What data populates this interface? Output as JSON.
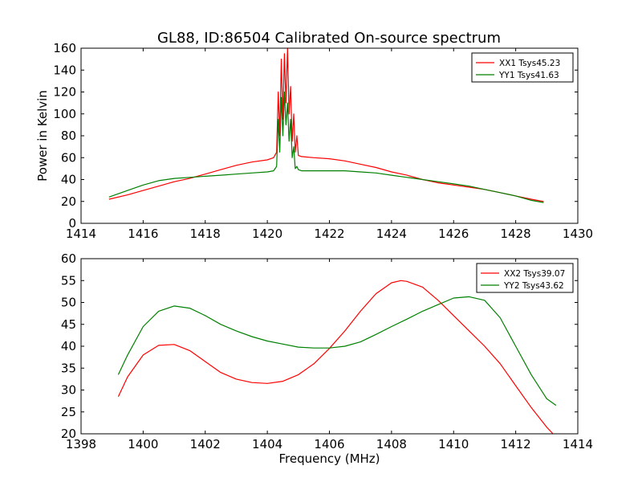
{
  "figure": {
    "title": "GL88, ID:86504 Calibrated On-source spectrum"
  },
  "chart_data": [
    {
      "type": "line",
      "title": "GL88, ID:86504 Calibrated On-source spectrum",
      "xlabel": "",
      "ylabel": "Power in Kelvin",
      "xlim": [
        1414,
        1430
      ],
      "ylim": [
        0,
        160
      ],
      "xticks": [
        1414,
        1416,
        1418,
        1420,
        1422,
        1424,
        1426,
        1428,
        1430
      ],
      "yticks": [
        0,
        20,
        40,
        60,
        80,
        100,
        120,
        140,
        160
      ],
      "grid": false,
      "legend_position": "top-right",
      "series": [
        {
          "name": "XX1 Tsys45.23",
          "color": "#ff0000",
          "x": [
            1414.9,
            1415.5,
            1416.0,
            1416.5,
            1417.0,
            1417.5,
            1418.0,
            1418.5,
            1419.0,
            1419.5,
            1420.0,
            1420.2,
            1420.3,
            1420.35,
            1420.4,
            1420.45,
            1420.5,
            1420.55,
            1420.6,
            1420.65,
            1420.7,
            1420.75,
            1420.8,
            1420.85,
            1420.9,
            1420.95,
            1421.0,
            1421.1,
            1421.5,
            1422.0,
            1422.5,
            1423.0,
            1423.5,
            1424.0,
            1424.5,
            1425.0,
            1425.5,
            1426.0,
            1426.5,
            1427.0,
            1427.5,
            1428.0,
            1428.5,
            1428.9
          ],
          "y": [
            22,
            26,
            30,
            34,
            38,
            41,
            45,
            49,
            53,
            56,
            58,
            60,
            65,
            120,
            80,
            150,
            95,
            155,
            110,
            160,
            100,
            125,
            75,
            100,
            65,
            80,
            62,
            61,
            60,
            59,
            57,
            54,
            51,
            47,
            44,
            40,
            37,
            35,
            33,
            31,
            28,
            25,
            22,
            20
          ]
        },
        {
          "name": "YY1 Tsys41.63",
          "color": "#008000",
          "x": [
            1414.9,
            1415.5,
            1416.0,
            1416.5,
            1417.0,
            1417.5,
            1418.0,
            1418.5,
            1419.0,
            1419.5,
            1420.0,
            1420.2,
            1420.3,
            1420.35,
            1420.4,
            1420.45,
            1420.5,
            1420.55,
            1420.6,
            1420.65,
            1420.7,
            1420.75,
            1420.8,
            1420.85,
            1420.9,
            1420.95,
            1421.0,
            1421.1,
            1421.5,
            1422.0,
            1422.5,
            1423.0,
            1423.5,
            1424.0,
            1424.5,
            1425.0,
            1425.5,
            1426.0,
            1426.5,
            1427.0,
            1427.5,
            1428.0,
            1428.5,
            1428.9
          ],
          "y": [
            24,
            30,
            35,
            39,
            41,
            42,
            43,
            44,
            45,
            46,
            47,
            48,
            52,
            95,
            65,
            115,
            80,
            120,
            90,
            110,
            75,
            95,
            60,
            70,
            50,
            52,
            49,
            48,
            48,
            48,
            48,
            47,
            46,
            44,
            42,
            40,
            38,
            36,
            34,
            31,
            28,
            25,
            21,
            19
          ]
        }
      ]
    },
    {
      "type": "line",
      "title": "",
      "xlabel": "Frequency (MHz)",
      "ylabel": "",
      "xlim": [
        1398,
        1414
      ],
      "ylim": [
        20,
        60
      ],
      "xticks": [
        1398,
        1400,
        1402,
        1404,
        1406,
        1408,
        1410,
        1412,
        1414
      ],
      "yticks": [
        20,
        25,
        30,
        35,
        40,
        45,
        50,
        55,
        60
      ],
      "grid": false,
      "legend_position": "top-right",
      "series": [
        {
          "name": "XX2 Tsys39.07",
          "color": "#ff0000",
          "x": [
            1399.2,
            1399.5,
            1400.0,
            1400.5,
            1401.0,
            1401.5,
            1402.0,
            1402.5,
            1403.0,
            1403.5,
            1404.0,
            1404.5,
            1405.0,
            1405.5,
            1406.0,
            1406.5,
            1407.0,
            1407.5,
            1408.0,
            1408.3,
            1408.5,
            1409.0,
            1409.5,
            1410.0,
            1410.5,
            1411.0,
            1411.5,
            1412.0,
            1412.5,
            1413.0,
            1413.2
          ],
          "y": [
            28.5,
            33,
            38,
            40.2,
            40.4,
            39,
            36.5,
            34,
            32.5,
            31.7,
            31.5,
            32,
            33.5,
            36,
            39.5,
            43.5,
            48,
            52,
            54.5,
            55,
            54.8,
            53.5,
            50.5,
            47,
            43.5,
            40,
            36,
            31,
            26,
            21.5,
            20
          ]
        },
        {
          "name": "YY2 Tsys43.62",
          "color": "#008000",
          "x": [
            1399.2,
            1399.5,
            1400.0,
            1400.5,
            1401.0,
            1401.5,
            1402.0,
            1402.5,
            1403.0,
            1403.5,
            1404.0,
            1404.5,
            1405.0,
            1405.5,
            1406.0,
            1406.5,
            1407.0,
            1407.5,
            1408.0,
            1408.5,
            1409.0,
            1409.5,
            1410.0,
            1410.5,
            1411.0,
            1411.5,
            1412.0,
            1412.5,
            1413.0,
            1413.3
          ],
          "y": [
            33.5,
            38,
            44.5,
            48,
            49.2,
            48.7,
            47,
            45,
            43.5,
            42.2,
            41.2,
            40.5,
            39.8,
            39.6,
            39.6,
            40,
            41,
            42.7,
            44.5,
            46.2,
            48,
            49.5,
            51,
            51.3,
            50.5,
            46.5,
            40,
            33.5,
            28,
            26.5
          ]
        }
      ]
    }
  ]
}
